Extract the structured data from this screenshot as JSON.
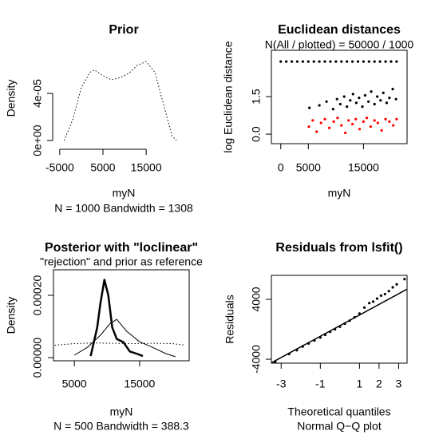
{
  "chart_data": [
    {
      "type": "line",
      "title": "Prior",
      "xlabel": "myN",
      "subtitle_bottom": "N = 1000   Bandwidth = 1308",
      "ylabel": "Density",
      "xlim": [
        -5900,
        25500
      ],
      "ylim": [
        -4.7e-06,
        7.66e-05
      ],
      "xticks": [
        -5000,
        5000,
        15000
      ],
      "yticks": [
        {
          "value": 0,
          "label": "0e+00"
        },
        {
          "value": 4e-05,
          "label": "4e-05"
        }
      ],
      "box": false,
      "series": [
        {
          "color": "#000000",
          "style": "dotted",
          "x": [
            -4000,
            -2000,
            0,
            2000,
            3000,
            5000,
            7000,
            9000,
            11000,
            13000,
            15000,
            17000,
            19000,
            21000,
            22000
          ],
          "values": [
            0,
            1.76e-05,
            4.5e-05,
            5.8e-05,
            6e-05,
            5.5e-05,
            5.15e-05,
            5.35e-05,
            5.7e-05,
            6.4e-05,
            6.7e-05,
            5.8e-05,
            3.1e-05,
            4e-06,
            0
          ]
        }
      ]
    },
    {
      "type": "scatter",
      "title": "Euclidean distances",
      "subtitle": "N(All / plotted) =  50000 / 1000",
      "xlabel": "myN",
      "ylabel": "log Euclidean distance",
      "xlim": [
        -1700,
        22900
      ],
      "ylim": [
        -0.38,
        3.35
      ],
      "xticks": [
        0,
        5000,
        15000
      ],
      "yticks": [
        {
          "value": 0,
          "label": "0.0"
        },
        1.5
      ],
      "box": true,
      "series": [
        {
          "color": "#000000",
          "x": [
            0,
            1000,
            2000,
            3000,
            4000,
            5000,
            6000,
            7000,
            8000,
            9000,
            10000,
            11000,
            12000,
            13000,
            14000,
            15000,
            16000,
            17000,
            18000,
            19000,
            20000,
            21000
          ],
          "values": [
            2.9,
            2.9,
            2.9,
            2.9,
            2.9,
            2.9,
            2.9,
            2.9,
            2.9,
            2.9,
            2.9,
            2.9,
            2.9,
            2.9,
            2.9,
            2.9,
            2.9,
            2.9,
            2.9,
            2.9,
            2.9,
            2.9
          ]
        },
        {
          "color": "#000000",
          "x": [
            5200,
            7000,
            8300,
            9500,
            10200,
            10800,
            11500,
            12000,
            12600,
            13100,
            13700,
            14200,
            14800,
            15300,
            15900,
            16400,
            17000,
            17500,
            18100,
            18600,
            19200,
            19700,
            20300,
            20900
          ],
          "values": [
            1.05,
            1.15,
            1.3,
            1.0,
            1.4,
            1.2,
            1.5,
            1.1,
            1.35,
            1.6,
            1.25,
            1.45,
            1.1,
            1.55,
            1.3,
            1.7,
            1.2,
            1.5,
            1.35,
            1.65,
            1.25,
            1.45,
            1.8,
            1.4
          ]
        },
        {
          "color": "#ff0000",
          "x": [
            5100,
            5800,
            6500,
            7300,
            8000,
            8800,
            9600,
            10300,
            11000,
            11700,
            12300,
            13000,
            13600,
            14300,
            15000,
            15600,
            16300,
            17000,
            17600,
            18300,
            19000,
            19700,
            20400,
            21000
          ],
          "values": [
            0.3,
            0.55,
            0.1,
            0.45,
            0.6,
            0.25,
            0.5,
            0.65,
            0.35,
            0.05,
            0.55,
            0.4,
            0.6,
            0.2,
            0.5,
            0.65,
            0.3,
            0.55,
            0.45,
            0.15,
            0.6,
            0.5,
            0.35,
            0.6
          ]
        }
      ]
    },
    {
      "type": "line",
      "title": "Posterior with \"loclinear\"",
      "subtitle": "\"rejection\" and prior as reference",
      "xlabel": "myN",
      "subtitle_bottom": "N = 500   Bandwidth = 388.3",
      "ylabel": "Density",
      "xlim": [
        1800,
        22600
      ],
      "ylim": [
        -1e-05,
        0.000282
      ],
      "xticks": [
        5000,
        15000
      ],
      "yticks": [
        {
          "value": 0,
          "label": "0.00000"
        },
        {
          "value": 0.0002,
          "label": "0.00020"
        }
      ],
      "box": true,
      "series": [
        {
          "color": "#000000",
          "style": "dotted",
          "x": [
            2000,
            5000,
            8000,
            11000,
            14000,
            17000,
            20000,
            22000
          ],
          "values": [
            4e-05,
            4.5e-05,
            4.7e-05,
            4.6e-05,
            4.5e-05,
            4.6e-05,
            4.5e-05,
            4e-05
          ]
        },
        {
          "color": "#000000",
          "style": "solid",
          "x": [
            5000,
            7000,
            9000,
            10500,
            11500,
            13000,
            15000,
            17000,
            19000,
            20500
          ],
          "values": [
            8e-06,
            3.3e-05,
            7.2e-05,
            0.00011,
            0.000123,
            8.5e-05,
            5.1e-05,
            3.3e-05,
            1.3e-05,
            3e-06
          ]
        },
        {
          "color": "#ff0000",
          "style": "thick",
          "x": [
            7500,
            8500,
            9000,
            9600,
            10200,
            10800,
            11500,
            12500,
            13500,
            14500,
            15500
          ],
          "values": [
            5e-06,
            9.7e-05,
            0.000174,
            0.00025,
            0.0002,
            9.7e-05,
            6e-05,
            5e-05,
            2e-05,
            1.3e-05,
            5e-06
          ]
        }
      ]
    },
    {
      "type": "scatter",
      "title": "Residuals from lsfit()",
      "xlabel": "Theoretical quantiles",
      "subtitle_bottom": "Normal Q−Q plot",
      "ylabel": "Residuals",
      "xlim": [
        -3.5,
        3.43
      ],
      "ylim": [
        -4530,
        7200
      ],
      "xticks": [
        -3,
        -1,
        1,
        2,
        3
      ],
      "yticks": [
        -4000,
        4000
      ],
      "box": true,
      "qqline": {
        "intercept": 485,
        "slope": 1419
      },
      "series": [
        {
          "color": "#000000",
          "x": [
            -3.3,
            -2.6,
            -2.2,
            -1.9,
            -1.6,
            -1.3,
            -1.0,
            -0.75,
            -0.5,
            -0.25,
            0,
            0.25,
            0.5,
            0.75,
            1.0,
            1.25,
            1.5,
            1.7,
            1.9,
            2.1,
            2.3,
            2.5,
            2.7,
            2.9,
            3.3
          ],
          "values": [
            -4400,
            -3300,
            -2800,
            -2300,
            -1900,
            -1500,
            -1100,
            -750,
            -350,
            0,
            350,
            750,
            1150,
            1600,
            2100,
            2900,
            3500,
            3700,
            4100,
            4500,
            4700,
            5100,
            5600,
            6000,
            6700
          ]
        }
      ]
    }
  ]
}
